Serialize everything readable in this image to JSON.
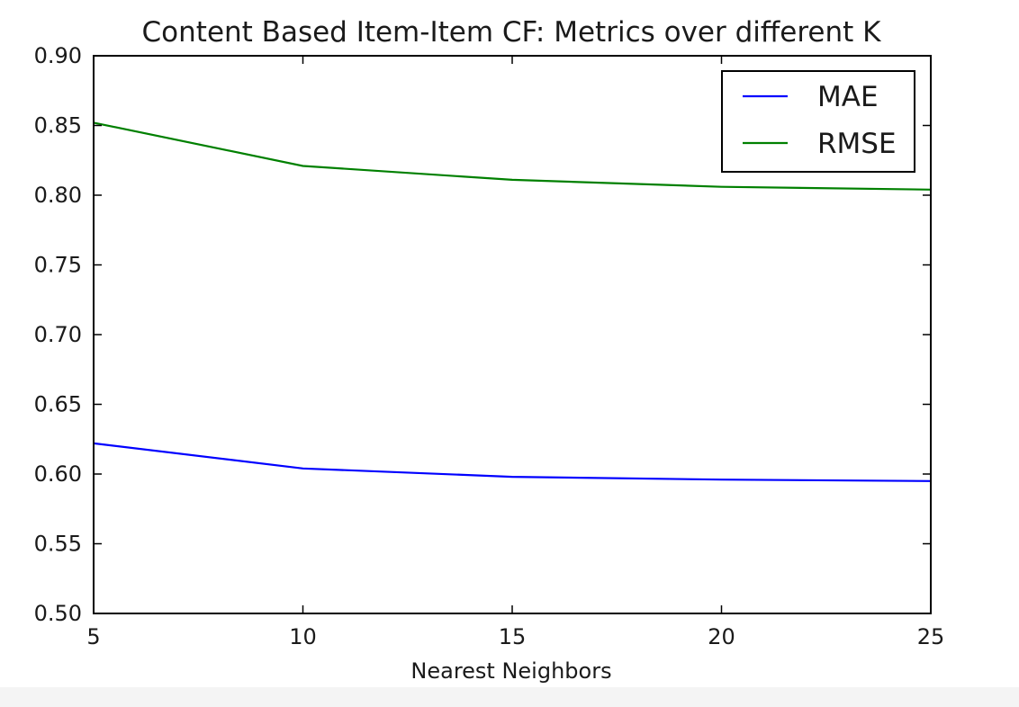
{
  "chart_data": {
    "type": "line",
    "title": "Content Based Item-Item CF: Metrics over different K",
    "xlabel": "Nearest Neighbors",
    "ylabel": "",
    "x": [
      5,
      10,
      15,
      20,
      25
    ],
    "xlim": [
      5,
      25
    ],
    "ylim": [
      0.5,
      0.9
    ],
    "xticks": [
      "5",
      "10",
      "15",
      "20",
      "25"
    ],
    "yticks": [
      "0.50",
      "0.55",
      "0.60",
      "0.65",
      "0.70",
      "0.75",
      "0.80",
      "0.85",
      "0.90"
    ],
    "grid": false,
    "legend_position": "top-right",
    "series": [
      {
        "name": "MAE",
        "color": "#0000ff",
        "values": [
          0.622,
          0.604,
          0.598,
          0.596,
          0.595
        ]
      },
      {
        "name": "RMSE",
        "color": "#008000",
        "values": [
          0.852,
          0.821,
          0.811,
          0.806,
          0.804
        ]
      }
    ]
  }
}
